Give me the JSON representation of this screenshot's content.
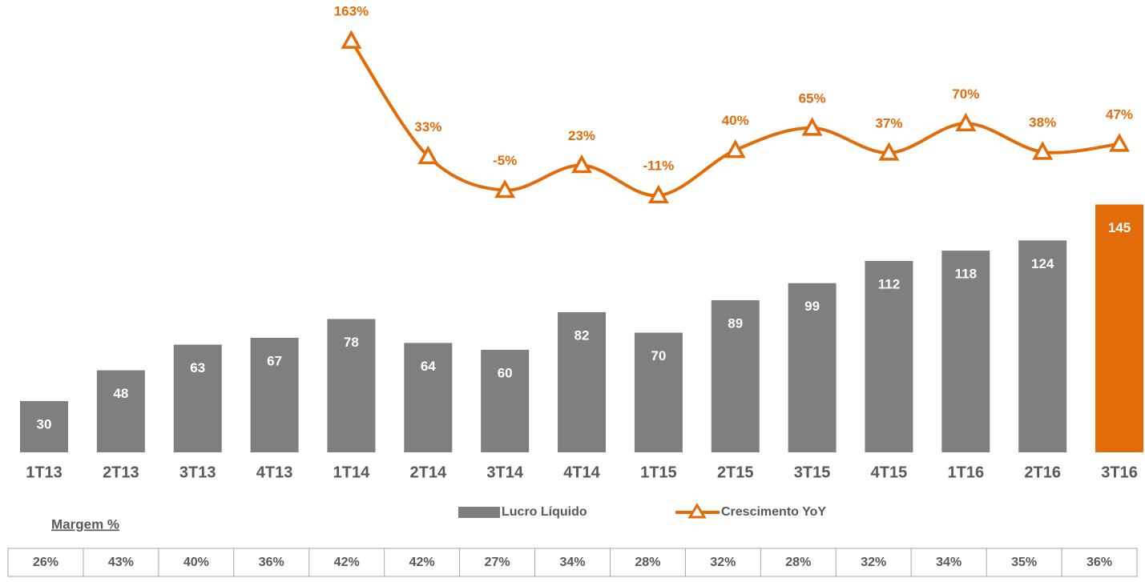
{
  "chart_data": {
    "type": "bar_line",
    "categories": [
      "1T13",
      "2T13",
      "3T13",
      "4T13",
      "1T14",
      "2T14",
      "3T14",
      "4T14",
      "1T15",
      "2T15",
      "3T15",
      "4T15",
      "1T16",
      "2T16",
      "3T16"
    ],
    "series": [
      {
        "name": "Lucro Líquido",
        "type": "bar",
        "colors": [
          "#7f7f7f",
          "#7f7f7f",
          "#7f7f7f",
          "#7f7f7f",
          "#7f7f7f",
          "#7f7f7f",
          "#7f7f7f",
          "#7f7f7f",
          "#7f7f7f",
          "#7f7f7f",
          "#7f7f7f",
          "#7f7f7f",
          "#7f7f7f",
          "#7f7f7f",
          "#e36c09"
        ],
        "values": [
          30,
          48,
          63,
          67,
          78,
          64,
          60,
          82,
          70,
          89,
          99,
          112,
          118,
          124,
          145
        ]
      },
      {
        "name": "Crescimento YoY",
        "type": "line",
        "axis": "y2",
        "color": "#e36c09",
        "values": [
          null,
          null,
          null,
          null,
          163,
          33,
          -5,
          23,
          -11,
          40,
          65,
          37,
          70,
          38,
          47
        ],
        "value_labels": [
          null,
          null,
          null,
          null,
          "163%",
          "33%",
          "-5%",
          "23%",
          "-11%",
          "40%",
          "65%",
          "37%",
          "70%",
          "38%",
          "47%"
        ]
      }
    ],
    "ylim": [
      0,
      260
    ],
    "y2lim": [
      -300,
      200
    ],
    "margin_table": {
      "title": "Margem %",
      "values": [
        "26%",
        "43%",
        "40%",
        "36%",
        "42%",
        "42%",
        "27%",
        "34%",
        "28%",
        "32%",
        "28%",
        "32%",
        "34%",
        "35%",
        "36%"
      ]
    }
  }
}
